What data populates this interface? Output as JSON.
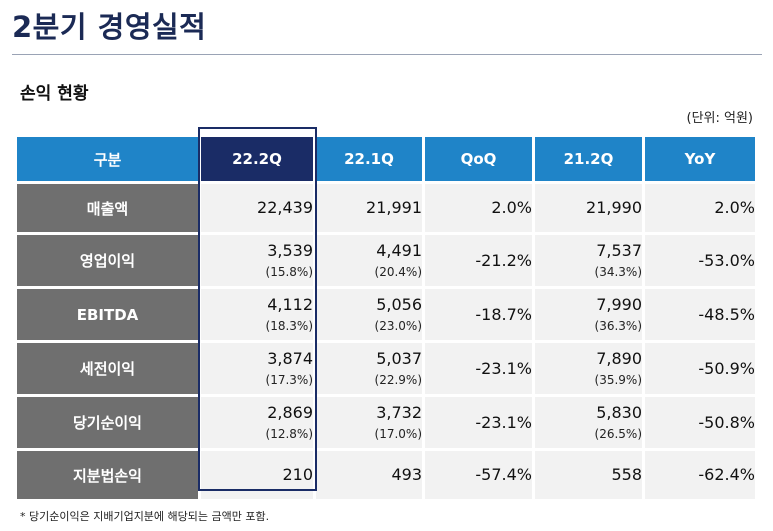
{
  "page": {
    "title": "2분기 경영실적",
    "subtitle": "손익 현황",
    "unit": "(단위: 억원)",
    "footnote": "* 당기순이익은 지배기업지분에 해당되는 금액만 포함."
  },
  "colors": {
    "header_blue": "#1f84c8",
    "header_current": "#1a2c66",
    "row_label_gray": "#6f6f6f",
    "cell_bg": "#f2f2f2",
    "title_navy": "#1b2a55"
  },
  "table": {
    "headers": [
      "구분",
      "22.2Q",
      "22.1Q",
      "QoQ",
      "21.2Q",
      "YoY"
    ],
    "rows": [
      {
        "label": "매출액",
        "c1": "22,439",
        "c1s": "",
        "c2": "21,991",
        "c2s": "",
        "qoq": "2.0%",
        "c3": "21,990",
        "c3s": "",
        "yoy": "2.0%"
      },
      {
        "label": "영업이익",
        "c1": "3,539",
        "c1s": "(15.8%)",
        "c2": "4,491",
        "c2s": "(20.4%)",
        "qoq": "-21.2%",
        "c3": "7,537",
        "c3s": "(34.3%)",
        "yoy": "-53.0%"
      },
      {
        "label": "EBITDA",
        "c1": "4,112",
        "c1s": "(18.3%)",
        "c2": "5,056",
        "c2s": "(23.0%)",
        "qoq": "-18.7%",
        "c3": "7,990",
        "c3s": "(36.3%)",
        "yoy": "-48.5%"
      },
      {
        "label": "세전이익",
        "c1": "3,874",
        "c1s": "(17.3%)",
        "c2": "5,037",
        "c2s": "(22.9%)",
        "qoq": "-23.1%",
        "c3": "7,890",
        "c3s": "(35.9%)",
        "yoy": "-50.9%"
      },
      {
        "label": "당기순이익",
        "c1": "2,869",
        "c1s": "(12.8%)",
        "c2": "3,732",
        "c2s": "(17.0%)",
        "qoq": "-23.1%",
        "c3": "5,830",
        "c3s": "(26.5%)",
        "yoy": "-50.8%"
      },
      {
        "label": "지분법손익",
        "c1": "210",
        "c1s": "",
        "c2": "493",
        "c2s": "",
        "qoq": "-57.4%",
        "c3": "558",
        "c3s": "",
        "yoy": "-62.4%"
      }
    ]
  }
}
